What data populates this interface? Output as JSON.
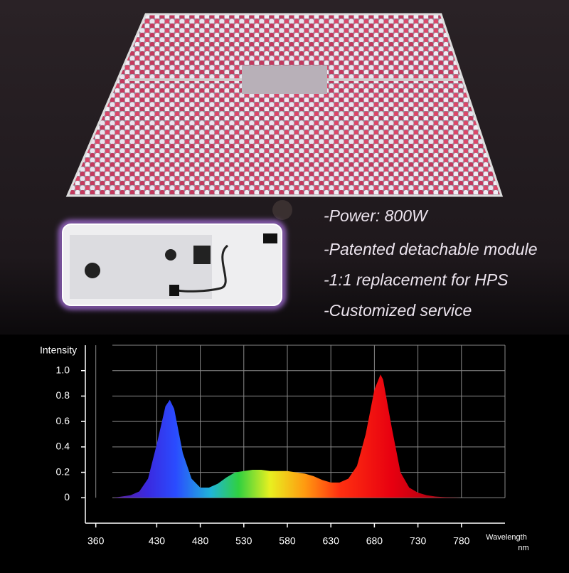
{
  "features": [
    "-Power: 800W",
    "-Patented detachable module",
    "-1:1 replacement for HPS",
    "-Customized service"
  ],
  "chart_data": {
    "type": "area",
    "y_label": "Intensity",
    "x_label": "Wavelength",
    "x_unit": "nm",
    "x": [
      380,
      390,
      400,
      410,
      420,
      430,
      440,
      445,
      450,
      460,
      470,
      480,
      490,
      500,
      510,
      520,
      530,
      540,
      550,
      560,
      570,
      580,
      590,
      600,
      610,
      620,
      630,
      640,
      650,
      660,
      670,
      680,
      687,
      690,
      700,
      710,
      720,
      730,
      740,
      750,
      760,
      780
    ],
    "values": [
      0,
      0.01,
      0.02,
      0.05,
      0.15,
      0.42,
      0.72,
      0.77,
      0.7,
      0.35,
      0.15,
      0.08,
      0.08,
      0.11,
      0.16,
      0.2,
      0.21,
      0.22,
      0.22,
      0.21,
      0.21,
      0.21,
      0.2,
      0.19,
      0.17,
      0.14,
      0.12,
      0.12,
      0.15,
      0.25,
      0.5,
      0.85,
      0.97,
      0.93,
      0.55,
      0.2,
      0.08,
      0.04,
      0.02,
      0.01,
      0.005,
      0
    ],
    "xlim": [
      348,
      830
    ],
    "xticks": [
      360,
      430,
      480,
      530,
      580,
      630,
      680,
      730,
      780
    ],
    "ylim": [
      -0.2,
      1.2
    ],
    "yticks": [
      0,
      0.2,
      0.4,
      0.6,
      0.8,
      {
        "value": 1,
        "label": "1.0"
      }
    ],
    "grid": true
  }
}
